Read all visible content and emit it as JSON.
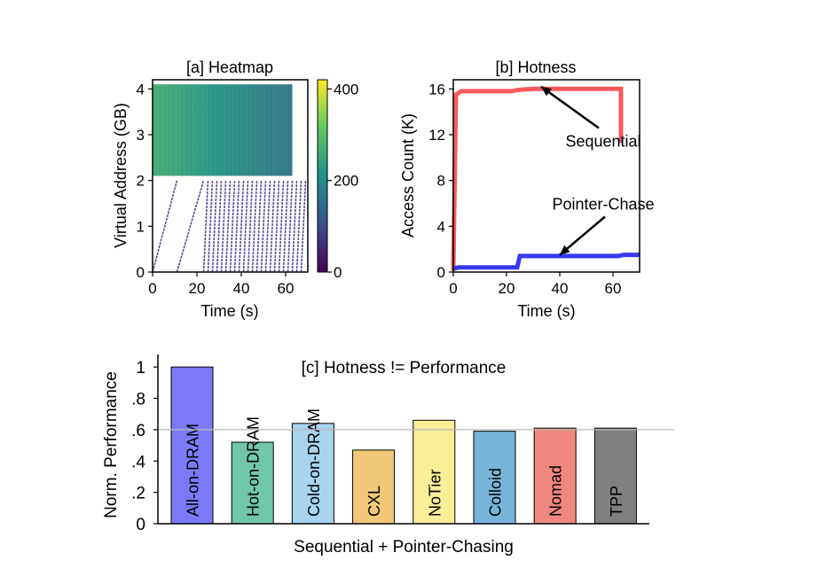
{
  "chart_data": [
    {
      "id": "a",
      "type": "heatmap",
      "title": "[a] Heatmap",
      "xlabel": "Time (s)",
      "ylabel": "Virtual Address (GB)",
      "xlim": [
        0,
        70
      ],
      "ylim": [
        0,
        4.2
      ],
      "xticks": [
        0,
        20,
        40,
        60
      ],
      "yticks": [
        0,
        1,
        2,
        3,
        4
      ],
      "colorbar": {
        "ticks": [
          0,
          200,
          400
        ],
        "range": [
          0,
          420
        ],
        "colors": [
          "#440154",
          "#3b528b",
          "#21918c",
          "#5ec962",
          "#fde725"
        ]
      },
      "dense_region": {
        "x": [
          0,
          63
        ],
        "y": [
          2.1,
          4.1
        ],
        "value_start": 310,
        "value_end": 190
      },
      "sequential_sweeps": [
        {
          "x": [
            0,
            11
          ],
          "y": [
            0,
            2
          ]
        },
        {
          "x": [
            11,
            23
          ],
          "y": [
            0,
            2
          ]
        },
        {
          "x": [
            23,
            25
          ],
          "y": [
            0,
            2
          ]
        },
        {
          "x": [
            25,
            27
          ],
          "y": [
            0,
            2
          ]
        },
        {
          "x": [
            27,
            29
          ],
          "y": [
            0,
            2
          ]
        },
        {
          "x": [
            29,
            31
          ],
          "y": [
            0,
            2
          ]
        },
        {
          "x": [
            31,
            33
          ],
          "y": [
            0,
            2
          ]
        },
        {
          "x": [
            33,
            35
          ],
          "y": [
            0,
            2
          ]
        },
        {
          "x": [
            35,
            37
          ],
          "y": [
            0,
            2
          ]
        },
        {
          "x": [
            37,
            39
          ],
          "y": [
            0,
            2
          ]
        },
        {
          "x": [
            39,
            41
          ],
          "y": [
            0,
            2
          ]
        },
        {
          "x": [
            41,
            43
          ],
          "y": [
            0,
            2
          ]
        },
        {
          "x": [
            43,
            45
          ],
          "y": [
            0,
            2
          ]
        },
        {
          "x": [
            45,
            47
          ],
          "y": [
            0,
            2
          ]
        },
        {
          "x": [
            47,
            49
          ],
          "y": [
            0,
            2
          ]
        },
        {
          "x": [
            49,
            51
          ],
          "y": [
            0,
            2
          ]
        },
        {
          "x": [
            51,
            53
          ],
          "y": [
            0,
            2
          ]
        },
        {
          "x": [
            53,
            55
          ],
          "y": [
            0,
            2
          ]
        },
        {
          "x": [
            55,
            57
          ],
          "y": [
            0,
            2
          ]
        },
        {
          "x": [
            57,
            59
          ],
          "y": [
            0,
            2
          ]
        },
        {
          "x": [
            59,
            61
          ],
          "y": [
            0,
            2
          ]
        },
        {
          "x": [
            61,
            63
          ],
          "y": [
            0,
            2
          ]
        },
        {
          "x": [
            63,
            65
          ],
          "y": [
            0,
            2
          ]
        },
        {
          "x": [
            65,
            67
          ],
          "y": [
            0,
            2
          ]
        },
        {
          "x": [
            67,
            69
          ],
          "y": [
            0,
            2
          ]
        }
      ]
    },
    {
      "id": "b",
      "type": "line",
      "title": "[b] Hotness",
      "xlabel": "Time (s)",
      "ylabel": "Access Count (K)",
      "xlim": [
        0,
        70
      ],
      "ylim": [
        0,
        16.8
      ],
      "xticks": [
        0,
        20,
        40,
        60
      ],
      "yticks": [
        0,
        4,
        8,
        12,
        16
      ],
      "series": [
        {
          "name": "Sequential",
          "color": "#f85a5a",
          "x": [
            0,
            1,
            3,
            10,
            22,
            24,
            30,
            62,
            63,
            63
          ],
          "y": [
            0.1,
            15.5,
            15.8,
            15.8,
            15.8,
            15.9,
            16.0,
            16.0,
            16.0,
            11.3
          ]
        },
        {
          "name": "Pointer-Chase",
          "color": "#3838f0",
          "x": [
            0,
            2,
            23,
            24,
            25,
            62,
            64,
            70
          ],
          "y": [
            0.3,
            0.4,
            0.4,
            0.4,
            1.4,
            1.4,
            1.5,
            1.5
          ]
        }
      ],
      "annotations": [
        {
          "text": "Sequential",
          "x": 38,
          "y": 11.5,
          "arrow_to": [
            33,
            16.2
          ]
        },
        {
          "text": "Pointer-Chase",
          "x": 38,
          "y": 6.0,
          "arrow_to": [
            40,
            1.5
          ]
        }
      ]
    },
    {
      "id": "c",
      "type": "bar",
      "title": "[c] Hotness != Performance",
      "xlabel": "Sequential + Pointer-Chasing",
      "ylabel": "Norm. Performance",
      "ylim": [
        0,
        1.08
      ],
      "yticks": [
        0,
        0.2,
        0.4,
        0.6,
        0.8,
        1.0
      ],
      "ytick_labels": [
        "0",
        ".2",
        ".4",
        ".6",
        ".8",
        "1"
      ],
      "reference_line": 0.6,
      "categories": [
        "All-on-DRAM",
        "Hot-on-DRAM",
        "Cold-on-DRAM",
        "CXL",
        "NoTier",
        "Colloid",
        "Nomad",
        "TPP"
      ],
      "values": [
        1.0,
        0.52,
        0.64,
        0.47,
        0.66,
        0.59,
        0.61,
        0.61
      ],
      "colors": [
        "#7a7af8",
        "#70c8a8",
        "#a8d4f0",
        "#f0c878",
        "#f8ee98",
        "#78b4d8",
        "#f08880",
        "#808080"
      ]
    }
  ]
}
